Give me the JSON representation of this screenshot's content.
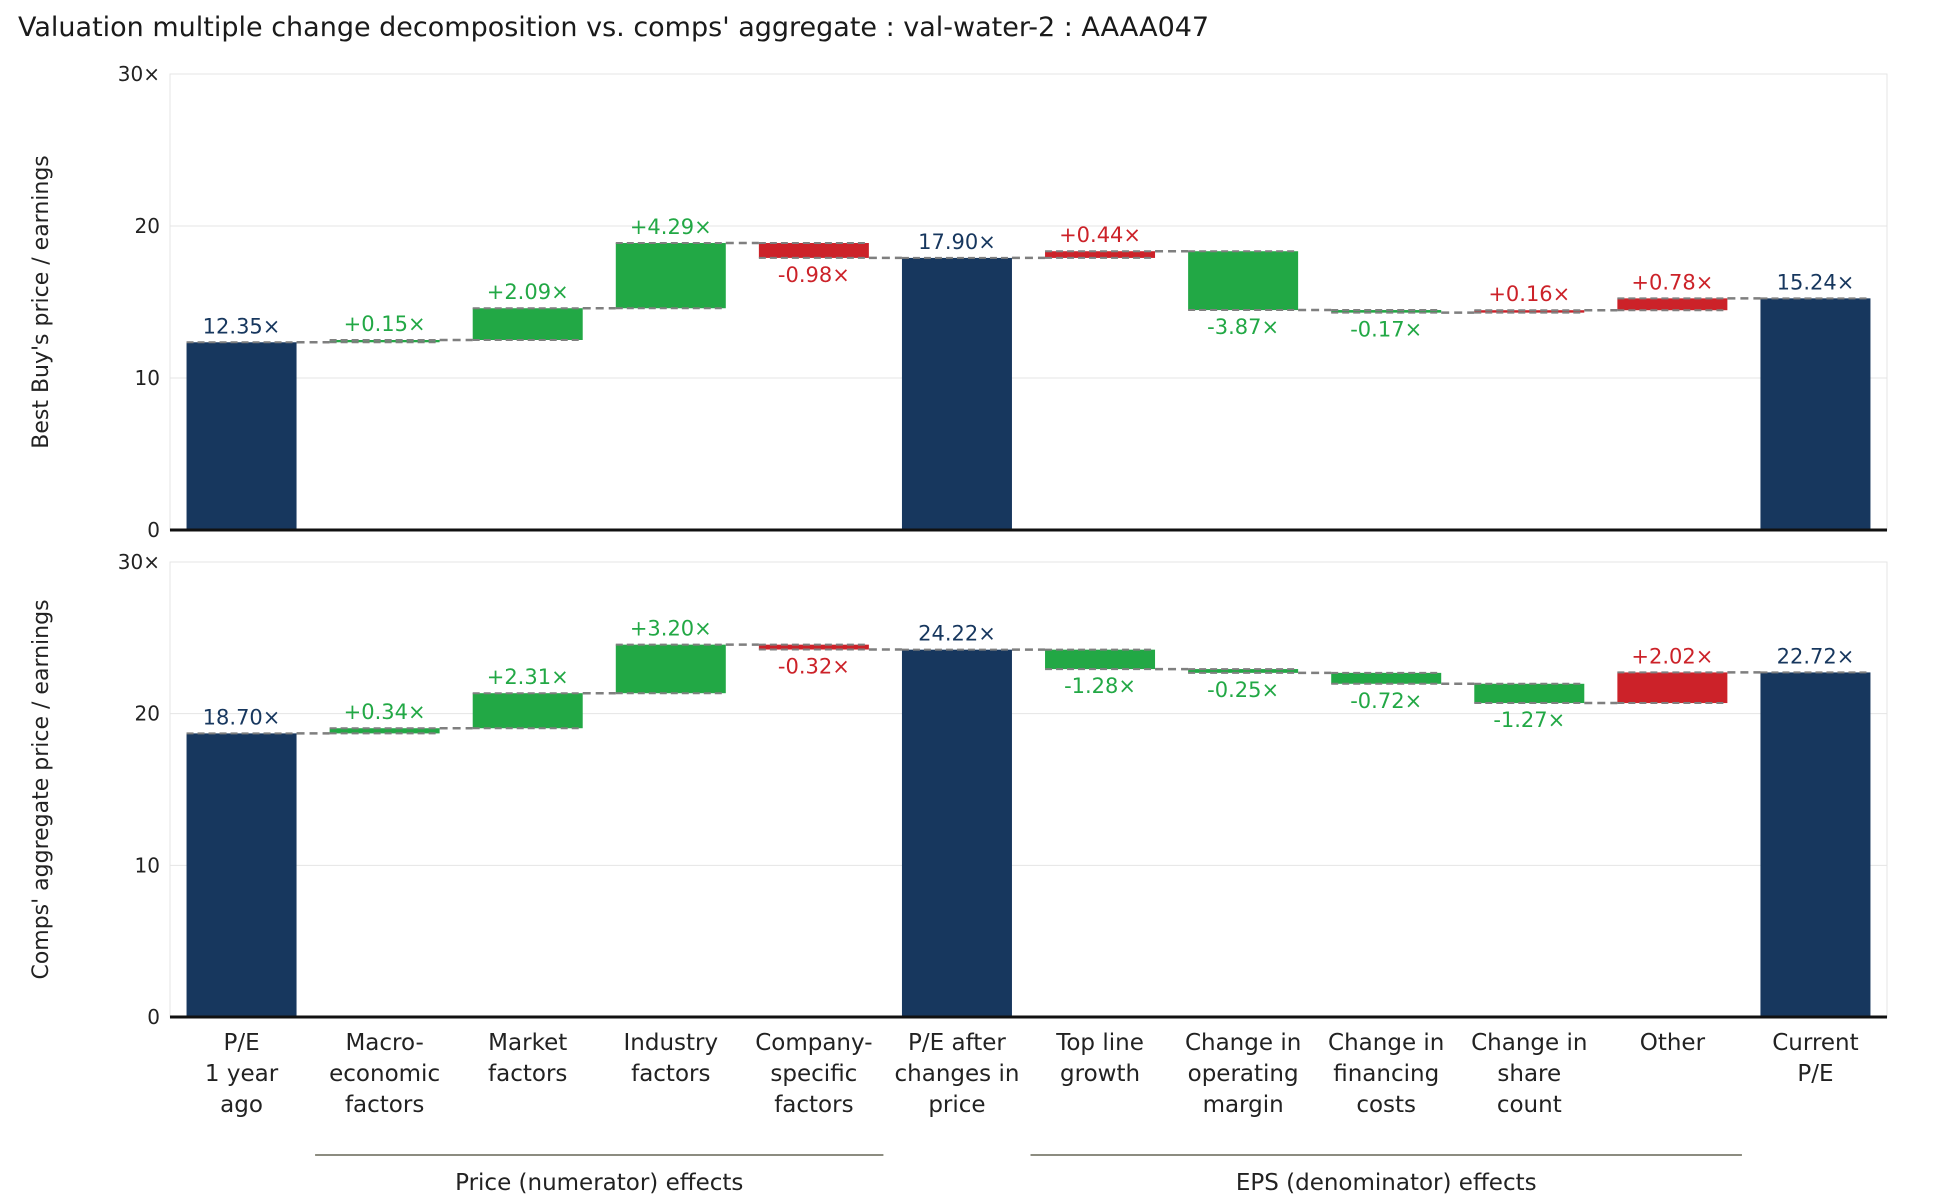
{
  "title": "Valuation multiple change decomposition vs. comps' aggregate : val-water-2 : AAAA047",
  "colors": {
    "total": "#17375e",
    "decrease_good": "#22a845",
    "increase_bad": "#cc2229",
    "positive_text": "#22a845",
    "negative_text": "#cc2229",
    "total_text": "#17375e",
    "connector": "#7f7f7f"
  },
  "categories": [
    [
      "P/E",
      "1 year",
      "ago"
    ],
    [
      "Macro-",
      "economic",
      "factors"
    ],
    [
      "Market",
      "factors"
    ],
    [
      "Industry",
      "factors"
    ],
    [
      "Company-",
      "specific",
      "factors"
    ],
    [
      "P/E after",
      "changes in",
      "price"
    ],
    [
      "Top line",
      "growth"
    ],
    [
      "Change in",
      "operating",
      "margin"
    ],
    [
      "Change in",
      "financing",
      "costs"
    ],
    [
      "Change in",
      "share",
      "count"
    ],
    [
      "Other"
    ],
    [
      "Current",
      "P/E"
    ]
  ],
  "groups": [
    {
      "label": "Price (numerator) effects",
      "from": 1,
      "to": 4
    },
    {
      "label": "EPS (denominator) effects",
      "from": 6,
      "to": 10
    }
  ],
  "chart_data": [
    {
      "type": "bar",
      "subtype": "waterfall",
      "ylabel": "Best Buy's price / earnings",
      "ylim": [
        0,
        30
      ],
      "yticks": [
        "0",
        "10",
        "20",
        "30×"
      ],
      "steps": [
        {
          "kind": "total",
          "value": 12.35,
          "label": "12.35×"
        },
        {
          "kind": "delta",
          "value": 0.15,
          "label": "+0.15×",
          "effect": "green"
        },
        {
          "kind": "delta",
          "value": 2.09,
          "label": "+2.09×",
          "effect": "green"
        },
        {
          "kind": "delta",
          "value": 4.29,
          "label": "+4.29×",
          "effect": "green"
        },
        {
          "kind": "delta",
          "value": -0.98,
          "label": "-0.98×",
          "effect": "red"
        },
        {
          "kind": "total",
          "value": 17.9,
          "label": "17.90×"
        },
        {
          "kind": "delta",
          "value": 0.44,
          "label": "+0.44×",
          "effect": "red"
        },
        {
          "kind": "delta",
          "value": -3.87,
          "label": "-3.87×",
          "effect": "green"
        },
        {
          "kind": "delta",
          "value": -0.17,
          "label": "-0.17×",
          "effect": "green"
        },
        {
          "kind": "delta",
          "value": 0.16,
          "label": "+0.16×",
          "effect": "red"
        },
        {
          "kind": "delta",
          "value": 0.78,
          "label": "+0.78×",
          "effect": "red"
        },
        {
          "kind": "total",
          "value": 15.24,
          "label": "15.24×"
        }
      ]
    },
    {
      "type": "bar",
      "subtype": "waterfall",
      "ylabel": "Comps' aggregate price / earnings",
      "ylim": [
        0,
        30
      ],
      "yticks": [
        "0",
        "10",
        "20",
        "30×"
      ],
      "steps": [
        {
          "kind": "total",
          "value": 18.7,
          "label": "18.70×"
        },
        {
          "kind": "delta",
          "value": 0.34,
          "label": "+0.34×",
          "effect": "green"
        },
        {
          "kind": "delta",
          "value": 2.31,
          "label": "+2.31×",
          "effect": "green"
        },
        {
          "kind": "delta",
          "value": 3.2,
          "label": "+3.20×",
          "effect": "green"
        },
        {
          "kind": "delta",
          "value": -0.32,
          "label": "-0.32×",
          "effect": "red"
        },
        {
          "kind": "total",
          "value": 24.22,
          "label": "24.22×"
        },
        {
          "kind": "delta",
          "value": -1.28,
          "label": "-1.28×",
          "effect": "green"
        },
        {
          "kind": "delta",
          "value": -0.25,
          "label": "-0.25×",
          "effect": "green"
        },
        {
          "kind": "delta",
          "value": -0.72,
          "label": "-0.72×",
          "effect": "green"
        },
        {
          "kind": "delta",
          "value": -1.27,
          "label": "-1.27×",
          "effect": "green"
        },
        {
          "kind": "delta",
          "value": 2.02,
          "label": "+2.02×",
          "effect": "red"
        },
        {
          "kind": "total",
          "value": 22.72,
          "label": "22.72×"
        }
      ]
    }
  ]
}
